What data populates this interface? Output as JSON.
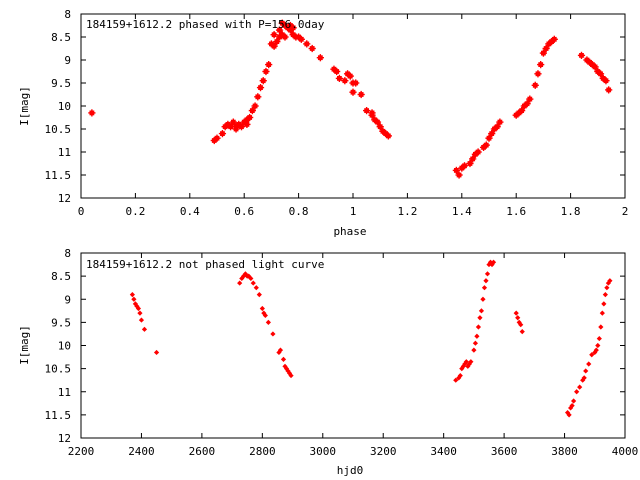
{
  "chart_data": [
    {
      "type": "scatter",
      "title": "184159+1612.2 phased with P=156.0day",
      "xlabel": "phase",
      "ylabel": "I[mag]",
      "xlim": [
        0,
        2
      ],
      "ylim": [
        12,
        8
      ],
      "y_inverted": true,
      "xticks": [
        "0",
        "0.2",
        "0.4",
        "0.6",
        "0.8",
        "1",
        "1.2",
        "1.4",
        "1.6",
        "1.8",
        "2"
      ],
      "yticks": [
        "8",
        "8.5",
        "9",
        "9.5",
        "10",
        "10.5",
        "11",
        "11.5",
        "12"
      ],
      "grid": false,
      "series": [
        {
          "color": "#ff0000",
          "marker": "square-cross",
          "x": [
            0.04,
            0.49,
            0.5,
            0.52,
            0.53,
            0.54,
            0.55,
            0.56,
            0.57,
            0.57,
            0.58,
            0.59,
            0.6,
            0.61,
            0.61,
            0.62,
            0.63,
            0.64,
            0.65,
            0.66,
            0.67,
            0.68,
            0.69,
            0.7,
            0.71,
            0.71,
            0.72,
            0.73,
            0.73,
            0.74,
            0.74,
            0.75,
            0.75,
            0.76,
            0.77,
            0.77,
            0.78,
            0.78,
            0.79,
            0.8,
            0.81,
            0.83,
            0.85,
            0.88,
            0.93,
            0.94,
            0.95,
            0.97,
            0.98,
            0.99,
            1.0,
            1.0,
            1.01,
            1.03,
            1.05,
            1.07,
            1.07,
            1.08,
            1.09,
            1.1,
            1.11,
            1.12,
            1.13,
            1.38,
            1.39,
            1.4,
            1.41,
            1.43,
            1.44,
            1.45,
            1.46,
            1.48,
            1.49,
            1.5,
            1.51,
            1.52,
            1.53,
            1.54,
            1.6,
            1.61,
            1.62,
            1.63,
            1.64,
            1.65,
            1.67,
            1.68,
            1.69,
            1.7,
            1.71,
            1.72,
            1.73,
            1.74,
            1.84,
            1.86,
            1.87,
            1.88,
            1.89,
            1.9,
            1.91,
            1.92,
            1.93,
            1.94
          ],
          "y": [
            10.15,
            10.75,
            10.7,
            10.6,
            10.45,
            10.4,
            10.45,
            10.35,
            10.5,
            10.45,
            10.4,
            10.45,
            10.35,
            10.4,
            10.3,
            10.25,
            10.1,
            10.0,
            9.8,
            9.6,
            9.45,
            9.25,
            9.1,
            8.65,
            8.7,
            8.45,
            8.6,
            8.35,
            8.5,
            8.45,
            8.2,
            8.25,
            8.5,
            8.3,
            8.25,
            8.35,
            8.3,
            8.45,
            8.5,
            8.5,
            8.55,
            8.65,
            8.75,
            8.95,
            9.2,
            9.25,
            9.4,
            9.45,
            9.3,
            9.35,
            9.5,
            9.7,
            9.5,
            9.75,
            10.1,
            10.15,
            10.2,
            10.3,
            10.35,
            10.45,
            10.55,
            10.6,
            10.65,
            11.4,
            11.5,
            11.35,
            11.3,
            11.25,
            11.15,
            11.05,
            11.0,
            10.9,
            10.85,
            10.7,
            10.6,
            10.5,
            10.45,
            10.35,
            10.2,
            10.15,
            10.1,
            10.0,
            9.95,
            9.85,
            9.55,
            9.3,
            9.1,
            8.85,
            8.75,
            8.65,
            8.6,
            8.55,
            8.9,
            9.0,
            9.05,
            9.1,
            9.15,
            9.25,
            9.3,
            9.4,
            9.45,
            9.65
          ]
        }
      ]
    },
    {
      "type": "scatter",
      "title": "184159+1612.2 not phased light curve",
      "xlabel": "hjd0",
      "ylabel": "I[mag]",
      "xlim": [
        2200,
        4000
      ],
      "ylim": [
        12,
        8
      ],
      "y_inverted": true,
      "xticks": [
        "2200",
        "2400",
        "2600",
        "2800",
        "3000",
        "3200",
        "3400",
        "3600",
        "3800",
        "4000"
      ],
      "yticks": [
        "8",
        "8.5",
        "9",
        "9.5",
        "10",
        "10.5",
        "11",
        "11.5",
        "12"
      ],
      "grid": false,
      "series": [
        {
          "color": "#ff0000",
          "marker": "diamond",
          "x": [
            2370,
            2375,
            2380,
            2385,
            2390,
            2395,
            2400,
            2410,
            2450,
            2725,
            2732,
            2738,
            2744,
            2750,
            2755,
            2762,
            2770,
            2780,
            2790,
            2800,
            2805,
            2810,
            2820,
            2835,
            2855,
            2860,
            2870,
            2875,
            2880,
            2885,
            2890,
            2895,
            3440,
            3450,
            3455,
            3460,
            3465,
            3470,
            3475,
            3480,
            3485,
            3490,
            3500,
            3505,
            3510,
            3515,
            3520,
            3525,
            3530,
            3535,
            3540,
            3545,
            3550,
            3555,
            3560,
            3565,
            3640,
            3645,
            3650,
            3655,
            3660,
            3810,
            3815,
            3820,
            3825,
            3830,
            3840,
            3850,
            3860,
            3865,
            3870,
            3880,
            3890,
            3900,
            3905,
            3910,
            3915,
            3920,
            3925,
            3930,
            3935,
            3940,
            3945,
            3950
          ],
          "y": [
            8.9,
            9.0,
            9.1,
            9.15,
            9.2,
            9.3,
            9.45,
            9.65,
            10.15,
            8.65,
            8.55,
            8.5,
            8.45,
            8.5,
            8.5,
            8.55,
            8.65,
            8.75,
            8.9,
            9.2,
            9.3,
            9.35,
            9.5,
            9.75,
            10.15,
            10.1,
            10.3,
            10.45,
            10.5,
            10.55,
            10.6,
            10.65,
            10.75,
            10.7,
            10.65,
            10.5,
            10.45,
            10.4,
            10.35,
            10.45,
            10.4,
            10.35,
            10.1,
            9.95,
            9.8,
            9.6,
            9.4,
            9.25,
            9.0,
            8.75,
            8.6,
            8.45,
            8.25,
            8.2,
            8.25,
            8.2,
            9.3,
            9.4,
            9.5,
            9.55,
            9.7,
            11.45,
            11.5,
            11.35,
            11.3,
            11.2,
            11.0,
            10.9,
            10.75,
            10.7,
            10.55,
            10.4,
            10.2,
            10.15,
            10.1,
            10.0,
            9.85,
            9.6,
            9.3,
            9.1,
            8.9,
            8.75,
            8.65,
            8.6
          ]
        }
      ]
    }
  ]
}
